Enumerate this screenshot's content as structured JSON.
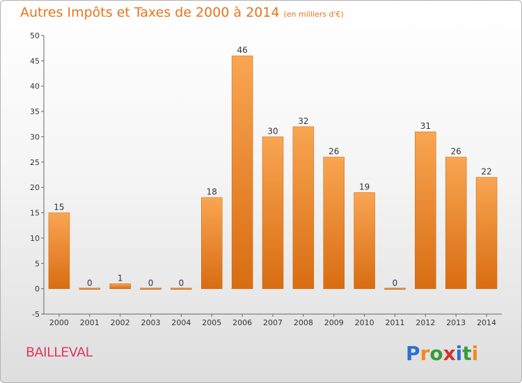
{
  "chart_data": {
    "type": "bar",
    "title": "Autres Impôts et Taxes de 2000 à 2014",
    "subtitle": "(en milliers d'€)",
    "categories": [
      "2000",
      "2001",
      "2002",
      "2003",
      "2004",
      "2005",
      "2006",
      "2007",
      "2008",
      "2009",
      "2010",
      "2011",
      "2012",
      "2013",
      "2014"
    ],
    "values": [
      15,
      0,
      1,
      0,
      0,
      18,
      46,
      30,
      32,
      26,
      19,
      0,
      31,
      26,
      22
    ],
    "ylim": [
      -5,
      50
    ],
    "yticks": [
      -5,
      0,
      5,
      10,
      15,
      20,
      25,
      30,
      35,
      40,
      45,
      50
    ],
    "grid": false,
    "bar_color": "#f0862a"
  },
  "commune": "BAILLEVAL",
  "logo_text": "Proxiti"
}
